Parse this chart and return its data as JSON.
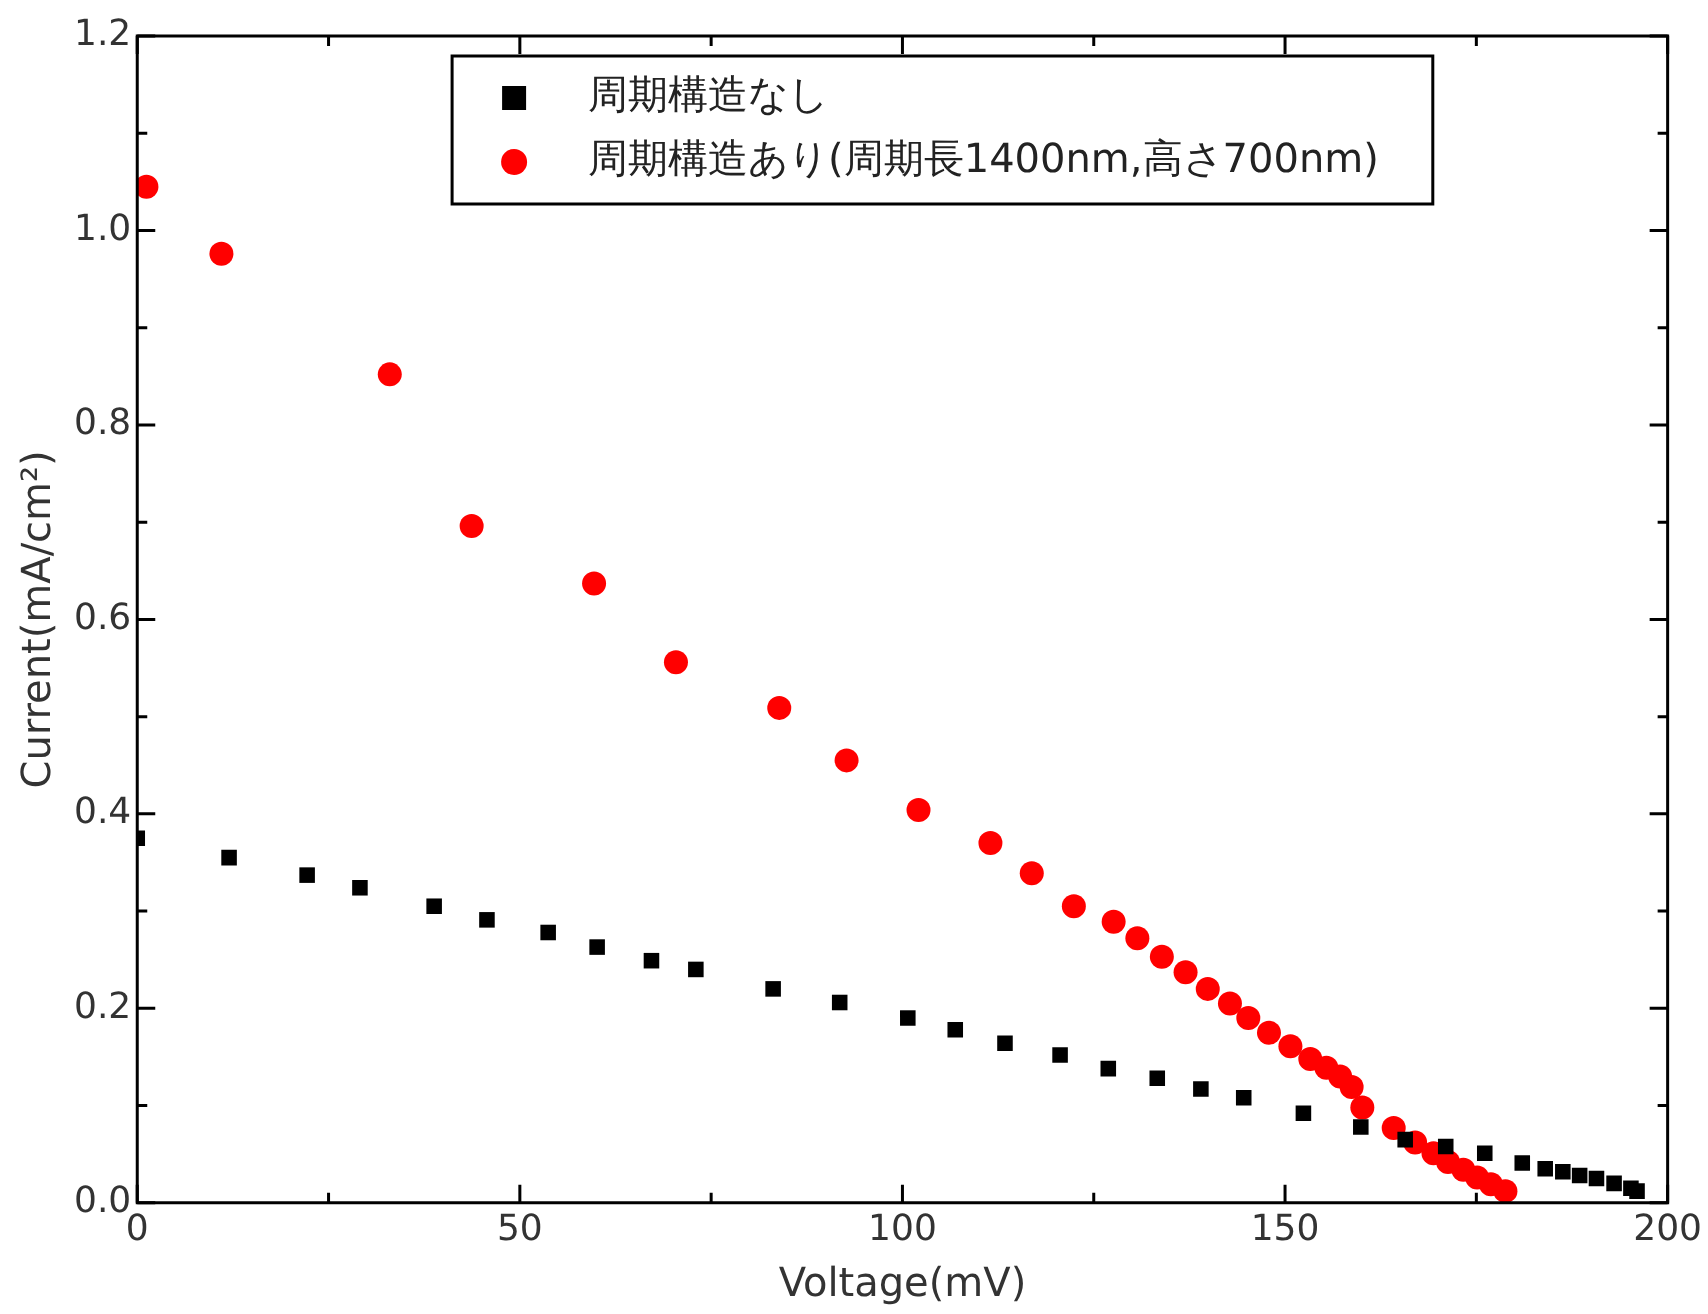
{
  "chart_data": {
    "type": "scatter",
    "xlabel": "Voltage(mV)",
    "ylabel": "Current(mA/cm²)",
    "xlim": [
      0,
      200
    ],
    "ylim": [
      0,
      1.2
    ],
    "xticks": [
      0,
      {
        "value": 25,
        "label": null
      },
      50,
      {
        "value": 75,
        "label": null
      },
      100,
      {
        "value": 125,
        "label": null
      },
      150,
      {
        "value": 175,
        "label": null
      },
      200
    ],
    "yticks": [
      {
        "value": 0,
        "label": "0.0"
      },
      {
        "value": 0.1,
        "label": null
      },
      0.2,
      {
        "value": 0.3,
        "label": null
      },
      0.4,
      {
        "value": 0.5,
        "label": null
      },
      0.6,
      {
        "value": 0.7,
        "label": null
      },
      0.8,
      {
        "value": 0.9,
        "label": null
      },
      {
        "value": 1,
        "label": "1.0"
      },
      {
        "value": 1.1,
        "label": null
      },
      1.2
    ],
    "grid": false,
    "legend": "top",
    "series": [
      {
        "name": "周期構造なし",
        "color": "#000000",
        "marker": "square",
        "x": [
          0,
          12,
          22.2,
          29.1,
          38.8,
          45.7,
          53.7,
          60.1,
          67.2,
          73,
          83.1,
          91.8,
          100.7,
          106.9,
          113.4,
          120.6,
          126.9,
          133.3,
          139,
          144.6,
          152.4,
          159.9,
          165.7,
          171,
          176.1,
          181,
          184,
          186.3,
          188.5,
          190.7,
          193,
          195.2,
          196
        ],
        "values": [
          0.375,
          0.355,
          0.337,
          0.324,
          0.305,
          0.291,
          0.278,
          0.263,
          0.249,
          0.24,
          0.22,
          0.206,
          0.19,
          0.178,
          0.164,
          0.152,
          0.138,
          0.128,
          0.117,
          0.108,
          0.092,
          0.078,
          0.065,
          0.058,
          0.051,
          0.041,
          0.035,
          0.032,
          0.028,
          0.025,
          0.02,
          0.015,
          0.012
        ]
      },
      {
        "name": "周期構造あり(周期長1400nm,高さ700nm)",
        "color": "#ff0000",
        "marker": "circle",
        "x": [
          1.2,
          11,
          33,
          43.7,
          59.7,
          70.4,
          83.9,
          92.7,
          102.1,
          111.5,
          116.9,
          122.4,
          127.6,
          130.7,
          133.9,
          137,
          139.9,
          142.8,
          145.2,
          147.9,
          150.7,
          153.3,
          155.4,
          157.2,
          158.7,
          160.1,
          164.2,
          167,
          169.4,
          171.3,
          173.3,
          175.1,
          176.9,
          178.8
        ],
        "values": [
          1.045,
          0.976,
          0.852,
          0.696,
          0.637,
          0.556,
          0.509,
          0.455,
          0.404,
          0.37,
          0.339,
          0.305,
          0.289,
          0.272,
          0.253,
          0.237,
          0.22,
          0.205,
          0.19,
          0.175,
          0.161,
          0.148,
          0.139,
          0.13,
          0.119,
          0.098,
          0.077,
          0.062,
          0.051,
          0.042,
          0.034,
          0.026,
          0.019,
          0.012
        ]
      }
    ]
  }
}
